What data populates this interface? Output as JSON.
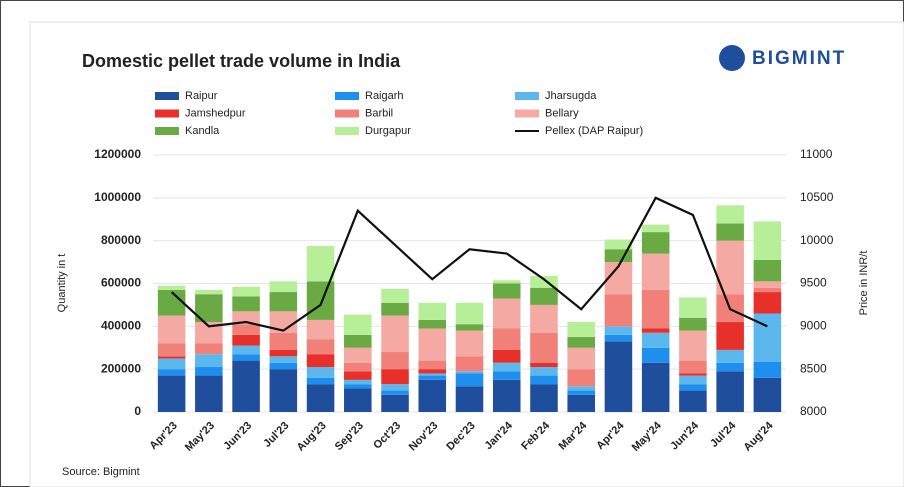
{
  "brand": "BIGMINT",
  "source": "Source: Bigmint",
  "chart_data": {
    "type": "bar",
    "title": "Domestic pellet trade volume in India",
    "y_label": "Quantity in t",
    "y2_label": "Price in INR/t",
    "categories": [
      "Apr'23",
      "May'23",
      "Jun'23",
      "Jul'23",
      "Aug'23",
      "Sep'23",
      "Oct'23",
      "Nov'23",
      "Dec'23",
      "Jan'24",
      "Feb'24",
      "Mar'24",
      "Apr'24",
      "May'24",
      "Jun'24",
      "Jul'24",
      "Aug'24"
    ],
    "ylim": [
      0,
      1200000
    ],
    "yticks": [
      0,
      200000,
      400000,
      600000,
      800000,
      1000000,
      1200000
    ],
    "y2lim": [
      8000,
      11000
    ],
    "y2ticks": [
      8000,
      8500,
      9000,
      9500,
      10000,
      10500,
      11000
    ],
    "stacked": true,
    "series": [
      {
        "name": "Raipur",
        "color": "#1f4e9c",
        "values": [
          170000,
          170000,
          240000,
          200000,
          130000,
          110000,
          80000,
          150000,
          120000,
          150000,
          130000,
          80000,
          330000,
          230000,
          100000,
          190000,
          160000
        ]
      },
      {
        "name": "Raigarh",
        "color": "#1e8fef",
        "values": [
          30000,
          40000,
          30000,
          30000,
          30000,
          20000,
          20000,
          20000,
          60000,
          40000,
          40000,
          20000,
          30000,
          70000,
          30000,
          40000,
          75000
        ]
      },
      {
        "name": "Jharsugda",
        "color": "#5cb8ec",
        "values": [
          50000,
          60000,
          40000,
          30000,
          50000,
          20000,
          30000,
          10000,
          10000,
          40000,
          40000,
          20000,
          40000,
          70000,
          40000,
          60000,
          225000
        ]
      },
      {
        "name": "Jamshedpur",
        "color": "#e8302a",
        "values": [
          10000,
          0,
          50000,
          30000,
          60000,
          40000,
          70000,
          20000,
          0,
          60000,
          20000,
          0,
          0,
          20000,
          10000,
          130000,
          100000
        ]
      },
      {
        "name": "Barbil",
        "color": "#f08078",
        "values": [
          60000,
          50000,
          50000,
          80000,
          70000,
          40000,
          80000,
          40000,
          70000,
          100000,
          140000,
          80000,
          150000,
          180000,
          60000,
          130000,
          20000
        ]
      },
      {
        "name": "Bellary",
        "color": "#f4aaa2",
        "values": [
          130000,
          100000,
          60000,
          100000,
          90000,
          70000,
          170000,
          150000,
          120000,
          140000,
          130000,
          100000,
          150000,
          170000,
          140000,
          250000,
          30000
        ]
      },
      {
        "name": "Kandla",
        "color": "#6aaa45",
        "values": [
          120000,
          130000,
          70000,
          90000,
          180000,
          60000,
          60000,
          40000,
          30000,
          70000,
          80000,
          50000,
          60000,
          100000,
          60000,
          80000,
          100000
        ]
      },
      {
        "name": "Durgapur",
        "color": "#b7ee98",
        "values": [
          20000,
          20000,
          45000,
          50000,
          165000,
          95000,
          65000,
          80000,
          100000,
          15000,
          55000,
          70000,
          45000,
          35000,
          95000,
          85000,
          180000
        ]
      },
      {
        "name": "Pellex (DAP Raipur)",
        "color": "#111111",
        "type": "line",
        "axis": "y2",
        "values": [
          9400,
          9000,
          9050,
          8950,
          9250,
          10350,
          9950,
          9550,
          9900,
          9850,
          9550,
          9200,
          9700,
          10500,
          10300,
          9200,
          9000
        ]
      }
    ]
  }
}
